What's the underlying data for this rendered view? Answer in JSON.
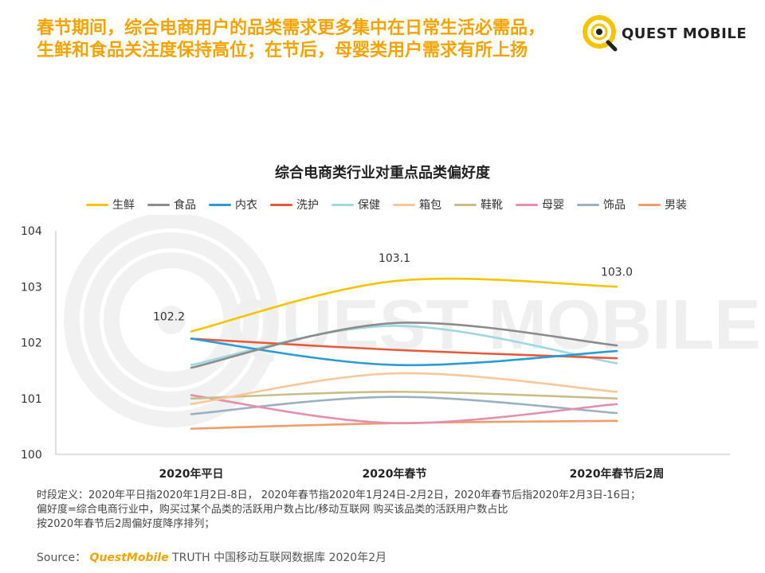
{
  "headline": {
    "line1": "春节期间，综合电商用户的品类需求更多集中在日常生活必需品，",
    "line2": "生鲜和食品关注度保持高位；在节后，母婴类用户需求有所上扬"
  },
  "logo": {
    "text": "QUEST MOBILE",
    "icon": "questmobile-logo-icon",
    "accent_color": "#f5c400"
  },
  "watermark": {
    "text": "QUEST MOBILE"
  },
  "chart_data": {
    "type": "line",
    "title": "综合电商类行业对重点品类偏好度",
    "categories": [
      "2020年平日",
      "2020年春节",
      "2020年春节后2周"
    ],
    "ylim": [
      100,
      104
    ],
    "yticks": [
      100,
      101,
      102,
      103,
      104
    ],
    "xlabel": "",
    "ylabel": "",
    "grid": false,
    "legend_position": "top",
    "series": [
      {
        "name": "生鲜",
        "color": "#f5c400",
        "values": [
          102.2,
          103.1,
          103.0
        ],
        "labels": [
          "102.2",
          "103.1",
          "103.0"
        ]
      },
      {
        "name": "食品",
        "color": "#8c8c8c",
        "values": [
          101.55,
          102.35,
          101.95
        ]
      },
      {
        "name": "内衣",
        "color": "#2b9bd6",
        "values": [
          102.07,
          101.6,
          101.85
        ]
      },
      {
        "name": "洗护",
        "color": "#e35b3a",
        "values": [
          102.07,
          101.87,
          101.72
        ]
      },
      {
        "name": "保健",
        "color": "#9fd8e0",
        "values": [
          101.6,
          102.3,
          101.63
        ]
      },
      {
        "name": "箱包",
        "color": "#f7c79a",
        "values": [
          100.9,
          101.45,
          101.12
        ]
      },
      {
        "name": "鞋靴",
        "color": "#c9bd8a",
        "values": [
          101.0,
          101.12,
          101.0
        ]
      },
      {
        "name": "母婴",
        "color": "#e38fae",
        "values": [
          101.06,
          100.56,
          100.9
        ]
      },
      {
        "name": "饰品",
        "color": "#9bb1c1",
        "values": [
          100.72,
          101.03,
          100.74
        ]
      },
      {
        "name": "男装",
        "color": "#f29c6b",
        "values": [
          100.46,
          100.56,
          100.6
        ]
      }
    ]
  },
  "footnotes": [
    "时段定义：2020年平日指2020年1月2日-8日， 2020年春节指2020年1月24日-2月2日，2020年春节后指2020年2月3日-16日；",
    "偏好度=综合电商行业中，购买过某个品类的活跃用户数占比/移动互联网 购买该品类的活跃用户数占比",
    "按2020年春节后2周偏好度降序排列；"
  ],
  "source": {
    "label": "Source：",
    "brand": "QuestMobile",
    "text": "TRUTH 中国移动互联网数据库 2020年2月"
  }
}
